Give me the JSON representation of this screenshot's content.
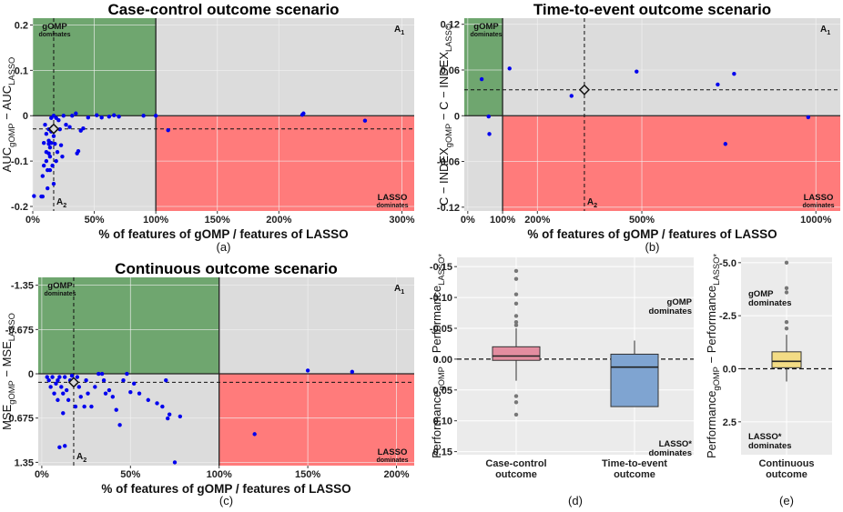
{
  "chart_data": [
    {
      "id": "a",
      "type": "scatter",
      "title": "Case-control outcome scenario",
      "xlabel": "% of features of gOMP / features of LASSO",
      "ylabel": "AUC_gOMP − AUC_LASSO",
      "ylabel_main": "AUC",
      "ylabel_sub1": "gOMP",
      "ylabel_mid": " − AUC",
      "ylabel_sub2": "LASSO",
      "xlim": [
        0,
        310
      ],
      "ylim": [
        -0.21,
        0.215
      ],
      "xticks": [
        0,
        50,
        100,
        150,
        200,
        300
      ],
      "xticklabels": [
        "0%",
        "50%",
        "100%",
        "150%",
        "200%",
        "300%"
      ],
      "yticks": [
        0.2,
        0.1,
        0,
        -0.1,
        -0.2
      ],
      "yticklabels": [
        "0.2",
        "0.1",
        "0",
        "-0.1",
        "-0.2"
      ],
      "reference": {
        "x": 17,
        "y": -0.029
      },
      "region_labels": {
        "top_left": "gOMP",
        "top_left_sub": "dominates",
        "top_right": "A",
        "top_right_sub": "1",
        "bottom_left": "A",
        "bottom_left_sub": "2",
        "bottom_right": "LASSO",
        "bottom_right_sub": "dominates"
      },
      "caption": "(a)",
      "points": [
        [
          1,
          -0.177
        ],
        [
          7,
          -0.178
        ],
        [
          8,
          -0.178
        ],
        [
          8,
          -0.133
        ],
        [
          9,
          -0.11
        ],
        [
          9,
          -0.06
        ],
        [
          10,
          -0.02
        ],
        [
          11,
          -0.04
        ],
        [
          11,
          -0.08
        ],
        [
          11,
          -0.1
        ],
        [
          12,
          -0.12
        ],
        [
          12,
          -0.16
        ],
        [
          13,
          -0.03
        ],
        [
          13,
          -0.055
        ],
        [
          13,
          -0.062
        ],
        [
          13,
          -0.083
        ],
        [
          14,
          -0.07
        ],
        [
          14,
          -0.09
        ],
        [
          14,
          -0.12
        ],
        [
          15,
          -0.005
        ],
        [
          15,
          -0.035
        ],
        [
          15,
          -0.06
        ],
        [
          16,
          -0.025
        ],
        [
          16,
          -0.11
        ],
        [
          17,
          0.0
        ],
        [
          17,
          -0.045
        ],
        [
          17,
          -0.15
        ],
        [
          18,
          -0.062
        ],
        [
          19,
          -0.1
        ],
        [
          19,
          -0.005
        ],
        [
          20,
          -0.08
        ],
        [
          21,
          -0.01
        ],
        [
          22,
          -0.03
        ],
        [
          23,
          -0.065
        ],
        [
          24,
          -0.09
        ],
        [
          25,
          0.0
        ],
        [
          27,
          -0.02
        ],
        [
          30,
          -0.025
        ],
        [
          32,
          0.0
        ],
        [
          35,
          0.005
        ],
        [
          36,
          -0.083
        ],
        [
          37,
          -0.078
        ],
        [
          39,
          -0.033
        ],
        [
          41,
          -0.028
        ],
        [
          45,
          -0.004
        ],
        [
          52,
          0.001
        ],
        [
          56,
          -0.004
        ],
        [
          62,
          -0.002
        ],
        [
          66,
          0.001
        ],
        [
          70,
          -0.002
        ],
        [
          90,
          0.0
        ],
        [
          100,
          0.0
        ],
        [
          110,
          -0.032
        ],
        [
          219,
          0.002
        ],
        [
          220,
          0.005
        ],
        [
          270,
          -0.011
        ]
      ]
    },
    {
      "id": "b",
      "type": "scatter",
      "title": "Time-to-event outcome scenario",
      "xlabel": "% of features of gOMP / features of LASSO",
      "ylabel": "C − INDEX_gOMP − C − INDEX_LASSO",
      "ylabel_main": "C − INDEX",
      "ylabel_sub1": "gOMP",
      "ylabel_mid": " − C − INDEX",
      "ylabel_sub2": "LASSO",
      "xlim": [
        -10,
        1070
      ],
      "ylim": [
        -0.125,
        0.128
      ],
      "xticks": [
        0,
        100,
        200,
        500,
        1000
      ],
      "xticklabels": [
        "0%",
        "100%",
        "200%",
        "500%",
        "1000%"
      ],
      "yticks": [
        0.12,
        0.06,
        0,
        -0.06,
        -0.12
      ],
      "yticklabels": [
        "0.12",
        "0.06",
        "0",
        "-0.06",
        "-0.12"
      ],
      "reference": {
        "x": 335,
        "y": 0.034
      },
      "region_labels": {
        "top_left": "gOMP",
        "top_left_sub": "dominates",
        "top_right": "A",
        "top_right_sub": "1",
        "bottom_left": "A",
        "bottom_left_sub": "2",
        "bottom_right": "LASSO",
        "bottom_right_sub": "dominates"
      },
      "caption": "(b)",
      "points": [
        [
          40,
          0.048
        ],
        [
          60,
          -0.001
        ],
        [
          62,
          -0.024
        ],
        [
          120,
          0.062
        ],
        [
          298,
          0.026
        ],
        [
          485,
          0.058
        ],
        [
          718,
          0.041
        ],
        [
          740,
          -0.037
        ],
        [
          765,
          0.055
        ],
        [
          978,
          -0.002
        ]
      ]
    },
    {
      "id": "c",
      "type": "scatter",
      "title": "Continuous outcome scenario",
      "xlabel": "% of features of gOMP / features of LASSO",
      "ylabel": "MSE_gOMP − MSE_LASSO",
      "ylabel_main": "MSE",
      "ylabel_sub1": "gOMP",
      "ylabel_mid": " − MSE",
      "ylabel_sub2": "LASSO",
      "xlim": [
        -2,
        210
      ],
      "ylim": [
        -1.47,
        1.4
      ],
      "y_inverted": true,
      "xticks": [
        0,
        50,
        100,
        150,
        200
      ],
      "xticklabels": [
        "0%",
        "50%",
        "100%",
        "150%",
        "200%"
      ],
      "yticks": [
        -1.35,
        -0.675,
        0,
        0.675,
        1.35
      ],
      "yticklabels": [
        "-1.35",
        "-0.675",
        "0",
        "0.675",
        "1.35"
      ],
      "reference": {
        "x": 18,
        "y": 0.13
      },
      "region_labels": {
        "top_left": "gOMP",
        "top_left_sub": "dominates",
        "top_right": "A",
        "top_right_sub": "1",
        "bottom_left": "A",
        "bottom_left_sub": "2",
        "bottom_right": "LASSO",
        "bottom_right_sub": "dominates"
      },
      "caption": "(c)",
      "points": [
        [
          3,
          0.05
        ],
        [
          4,
          0.1
        ],
        [
          5,
          0.2
        ],
        [
          6,
          0.05
        ],
        [
          7,
          0.3
        ],
        [
          8,
          0.15
        ],
        [
          9,
          0.1
        ],
        [
          9,
          0.4
        ],
        [
          10,
          0.05
        ],
        [
          10,
          1.12
        ],
        [
          11,
          0.2
        ],
        [
          12,
          0.3
        ],
        [
          12,
          0.6
        ],
        [
          13,
          1.1
        ],
        [
          13,
          0.05
        ],
        [
          14,
          0.25
        ],
        [
          15,
          0.4
        ],
        [
          16,
          0.1
        ],
        [
          17,
          0.03
        ],
        [
          18,
          0.12
        ],
        [
          19,
          0.5
        ],
        [
          20,
          0.05
        ],
        [
          21,
          0.2
        ],
        [
          22,
          0.35
        ],
        [
          24,
          0.5
        ],
        [
          25,
          0.1
        ],
        [
          26,
          0.3
        ],
        [
          28,
          0.5
        ],
        [
          30,
          0.2
        ],
        [
          32,
          0.0
        ],
        [
          34,
          0.0
        ],
        [
          35,
          0.1
        ],
        [
          36,
          0.3
        ],
        [
          38,
          0.25
        ],
        [
          40,
          0.35
        ],
        [
          42,
          0.55
        ],
        [
          44,
          0.78
        ],
        [
          46,
          0.1
        ],
        [
          48,
          0.0
        ],
        [
          50,
          0.28
        ],
        [
          52,
          0.15
        ],
        [
          55,
          0.3
        ],
        [
          60,
          0.4
        ],
        [
          65,
          0.45
        ],
        [
          68,
          0.5
        ],
        [
          70,
          0.1
        ],
        [
          71,
          0.68
        ],
        [
          72,
          0.62
        ],
        [
          75,
          1.35
        ],
        [
          78,
          0.65
        ],
        [
          120,
          0.92
        ],
        [
          150,
          -0.05
        ],
        [
          175,
          -0.03
        ]
      ]
    },
    {
      "id": "d",
      "type": "box",
      "categories": [
        "Case-control\noutcome",
        "Time-to-event\noutcome"
      ],
      "category_lines": [
        [
          "Case-control",
          "outcome"
        ],
        [
          "Time-to-event",
          "outcome"
        ]
      ],
      "ylabel": "Performance_gOMP − Performance_LASSO*",
      "ylabel_main": "Performance",
      "ylabel_sub1": "gOMP",
      "ylabel_mid": " − Performance",
      "ylabel_sub2": "LASSO*",
      "ylim": [
        0.155,
        -0.165
      ],
      "y_inverted": true,
      "yticks": [
        -0.15,
        -0.1,
        -0.05,
        0.0,
        0.05,
        0.1,
        0.15
      ],
      "yticklabels": [
        "-0.15",
        "-0.10",
        "-0.05",
        "0.00",
        "0.05",
        "0.10",
        "0.15"
      ],
      "boxes": [
        {
          "name": "Case-control outcome",
          "color": "#e38da0",
          "q1": -0.02,
          "median": -0.005,
          "q3": 0.002,
          "whisker_low": -0.05,
          "whisker_high": 0.035,
          "outliers": [
            -0.143,
            -0.13,
            -0.105,
            -0.09,
            -0.07,
            -0.06,
            -0.055,
            0.06,
            0.07,
            0.09
          ]
        },
        {
          "name": "Time-to-event outcome",
          "color": "#7fa4d1",
          "q1": -0.008,
          "median": 0.013,
          "q3": 0.077,
          "whisker_low": -0.03,
          "whisker_high": 0.077,
          "outliers": []
        }
      ],
      "reference_y": 0,
      "top_label": "gOMP",
      "top_label_sub": "dominates",
      "bottom_label": "LASSO*",
      "bottom_label_sub": "dominates",
      "caption": "(d)"
    },
    {
      "id": "e",
      "type": "box",
      "categories": [
        "Continuous\noutcome"
      ],
      "category_lines": [
        [
          "Continuous",
          "outcome"
        ]
      ],
      "ylabel": "Performance_gOMP − Performance_LASSO*",
      "ylabel_main": "Performance",
      "ylabel_sub1": "gOMP",
      "ylabel_mid": " − Performance",
      "ylabel_sub2": "LASSO*",
      "ylim": [
        4.05,
        -5.25
      ],
      "y_inverted": true,
      "yticks": [
        -5.0,
        -2.5,
        0.0,
        2.5
      ],
      "yticklabels": [
        "-5.0",
        "-2.5",
        "0.0",
        "2.5"
      ],
      "boxes": [
        {
          "name": "Continuous outcome",
          "color": "#f3dc85",
          "q1": -0.8,
          "median": -0.35,
          "q3": -0.05,
          "whisker_low": -1.6,
          "whisker_high": 0.6,
          "outliers": [
            -5.0,
            -3.8,
            -3.6,
            -2.2,
            -1.9
          ]
        }
      ],
      "reference_y": 0,
      "top_label": "gOMP",
      "top_label_sub": "dominates",
      "bottom_label": "LASSO*",
      "bottom_label_sub": "dominates",
      "caption": "(e)"
    }
  ],
  "colors": {
    "panel_bg": "#dcdcdc",
    "gomp_region": "#6fa66f",
    "lasso_region": "#ff7b7b",
    "points": "#0000ee",
    "grid": "#f2f2f2",
    "box_bg": "#ebebeb"
  }
}
